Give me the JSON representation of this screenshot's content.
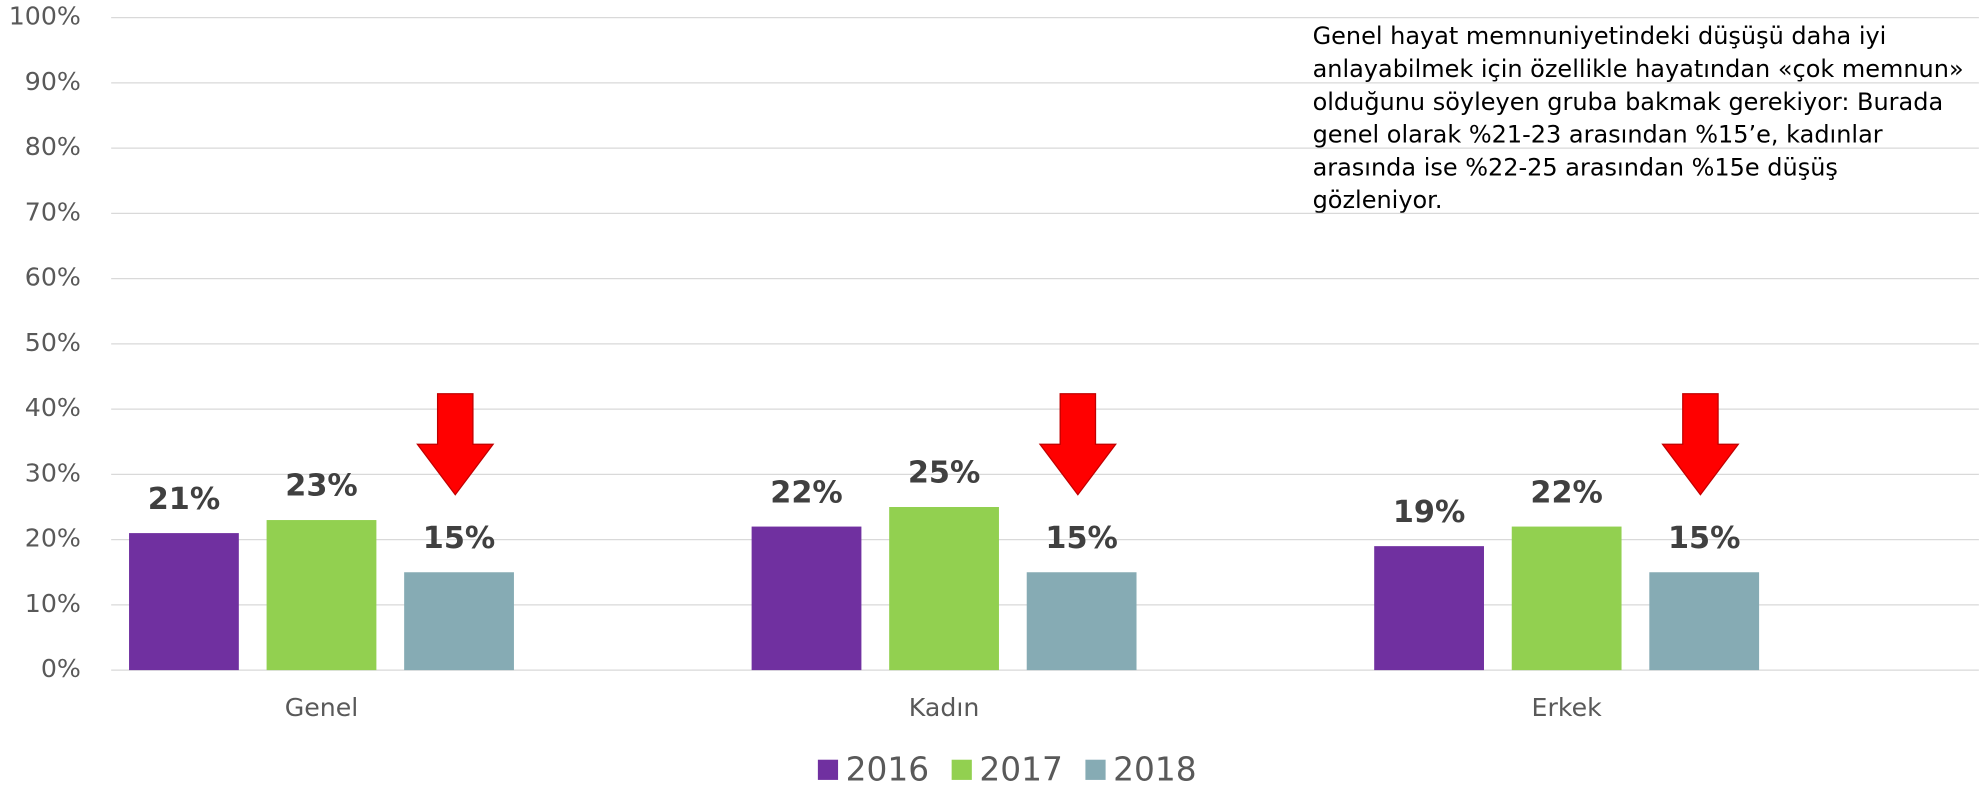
{
  "chart_data": {
    "type": "bar",
    "categories": [
      "Genel",
      "Kadın",
      "Erkek"
    ],
    "series": [
      {
        "name": "2016",
        "color": "#7030a0",
        "values": [
          21,
          22,
          19
        ],
        "value_labels": [
          "21%",
          "22%",
          "19%"
        ]
      },
      {
        "name": "2017",
        "color": "#92d050",
        "values": [
          23,
          25,
          22
        ],
        "value_labels": [
          "23%",
          "25%",
          "22%"
        ]
      },
      {
        "name": "2018",
        "color": "#86abb4",
        "values": [
          15,
          15,
          15
        ],
        "value_labels": [
          "15%",
          "15%",
          "15%"
        ]
      }
    ],
    "ylim": [
      0,
      100
    ],
    "yticks": [
      {
        "value": 0,
        "label": "0%"
      },
      {
        "value": 10,
        "label": "10%"
      },
      {
        "value": 20,
        "label": "20%"
      },
      {
        "value": 30,
        "label": "30%"
      },
      {
        "value": 40,
        "label": "40%"
      },
      {
        "value": 50,
        "label": "50%"
      },
      {
        "value": 60,
        "label": "60%"
      },
      {
        "value": 70,
        "label": "70%"
      },
      {
        "value": 80,
        "label": "80%"
      },
      {
        "value": 90,
        "label": "90%"
      },
      {
        "value": 100,
        "label": "100%"
      }
    ],
    "grid": true,
    "legend": "bottom",
    "annotation": "Genel hayat memnuniyetindeki düşüşü daha iyi anlayabilmek için özellikle hayatından «çok memnun» olduğunu söyleyen gruba bakmak gerekiyor: Burada genel olarak %21-23 arasından %15’e, kadınlar arasında ise %22-25 arasından %15e düşüş gözleniyor."
  }
}
